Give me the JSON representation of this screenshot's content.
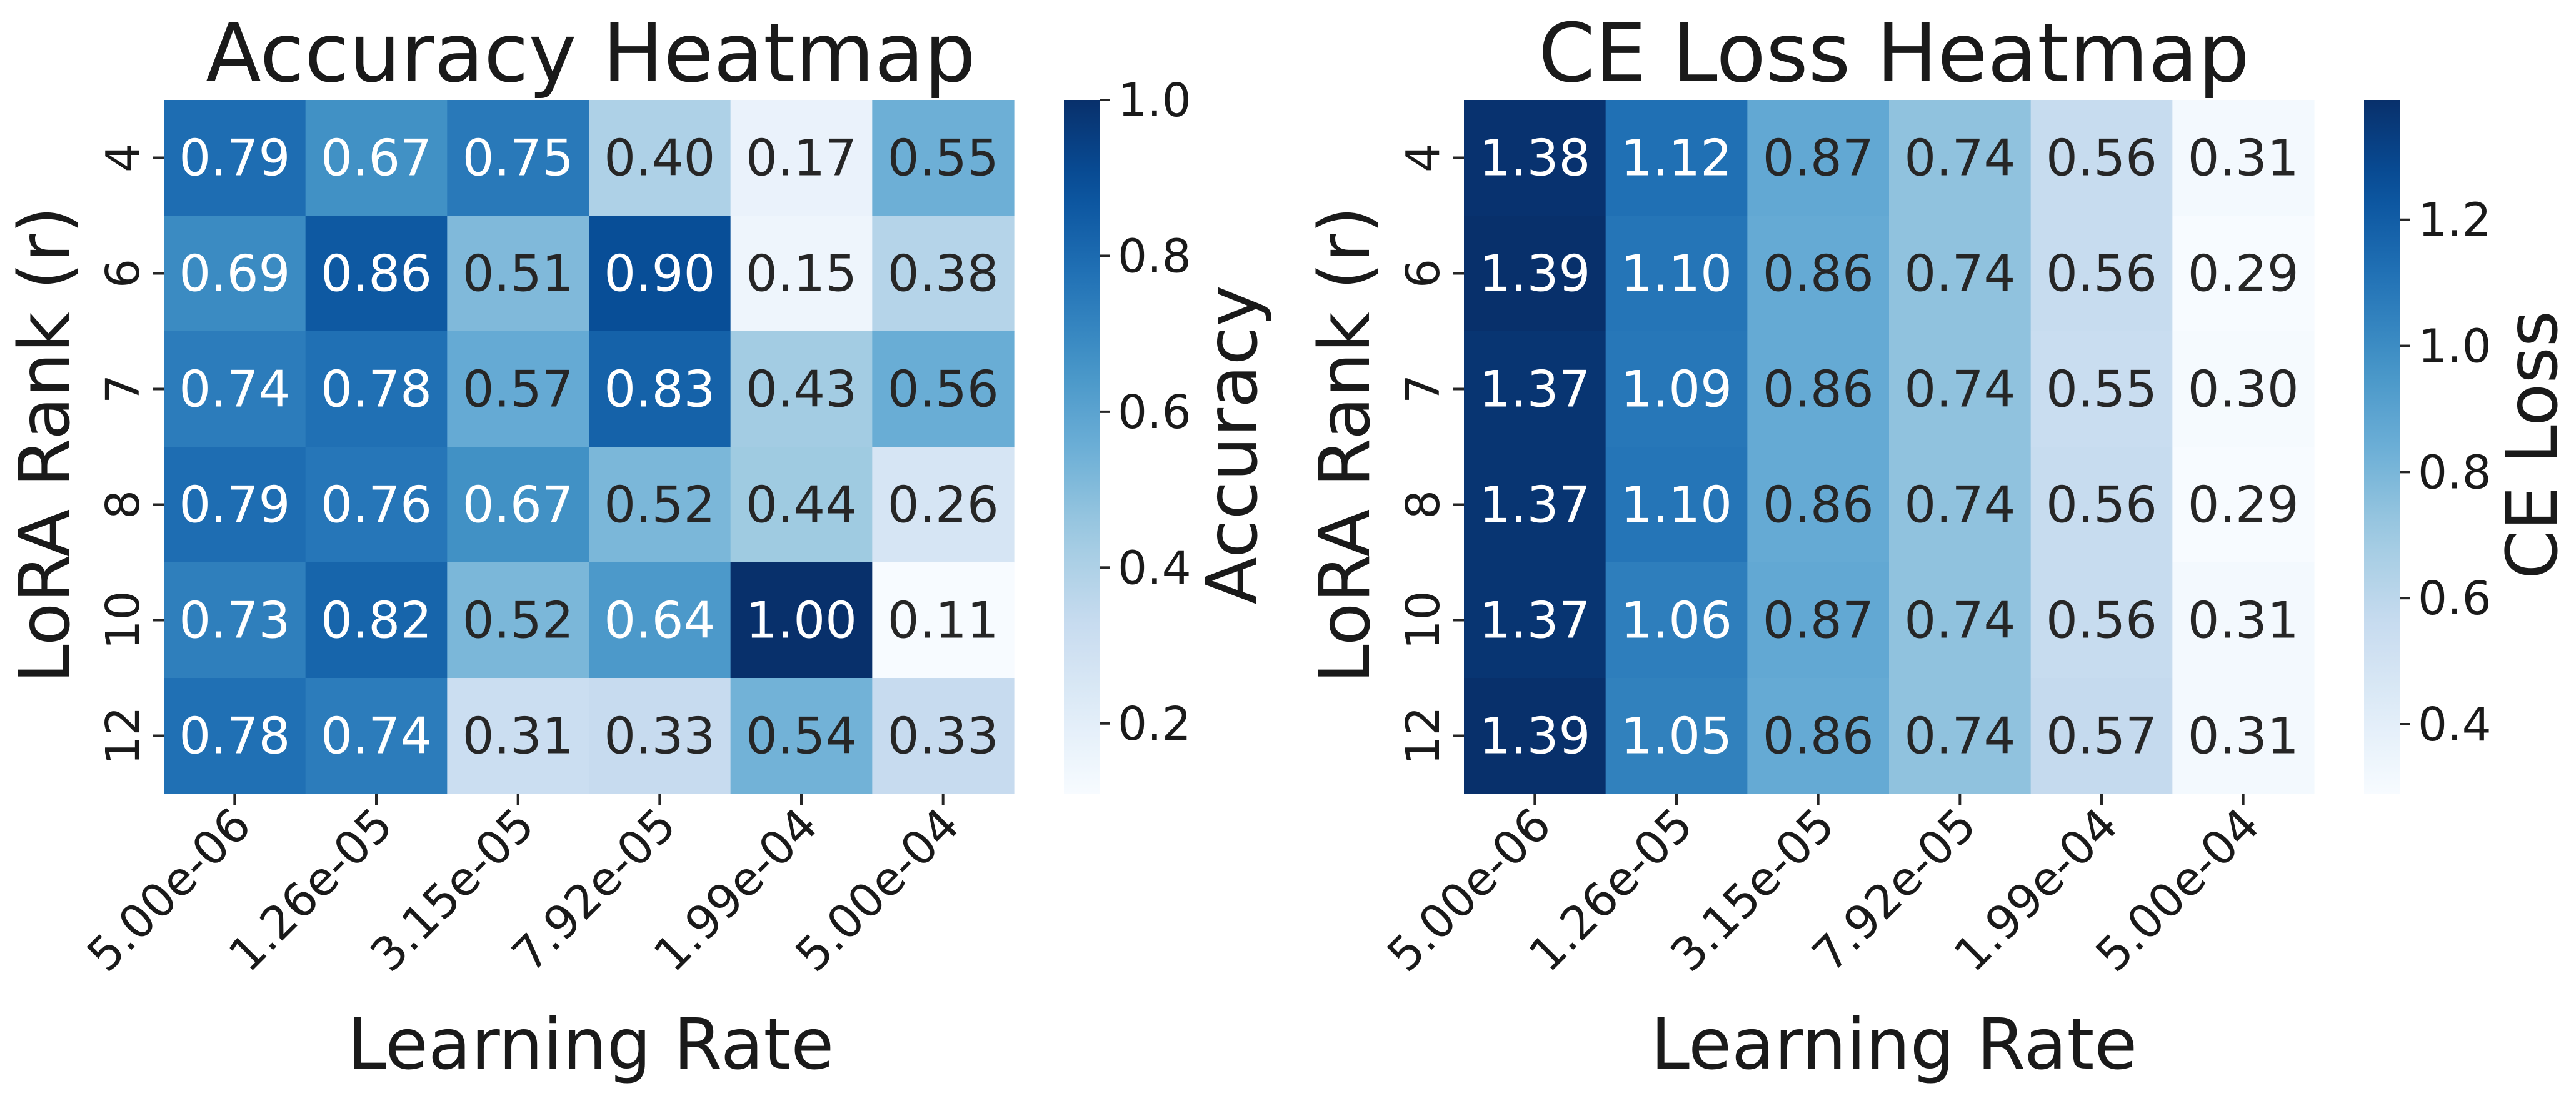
{
  "chart_data": [
    {
      "type": "heatmap",
      "title": "Accuracy Heatmap",
      "xlabel": "Learning Rate",
      "ylabel": "LoRA Rank (r)",
      "x_categories": [
        "5.00e-06",
        "1.26e-05",
        "3.15e-05",
        "7.92e-05",
        "1.99e-04",
        "5.00e-04"
      ],
      "y_categories": [
        "4",
        "6",
        "7",
        "8",
        "10",
        "12"
      ],
      "values": [
        [
          0.79,
          0.67,
          0.75,
          0.4,
          0.17,
          0.55
        ],
        [
          0.69,
          0.86,
          0.51,
          0.9,
          0.15,
          0.38
        ],
        [
          0.74,
          0.78,
          0.57,
          0.83,
          0.43,
          0.56
        ],
        [
          0.79,
          0.76,
          0.67,
          0.52,
          0.44,
          0.26
        ],
        [
          0.73,
          0.82,
          0.52,
          0.64,
          1.0,
          0.11
        ],
        [
          0.78,
          0.74,
          0.31,
          0.33,
          0.54,
          0.33
        ]
      ],
      "colorbar": {
        "label": "Accuracy",
        "vmin": 0.11,
        "vmax": 1.0,
        "ticks": [
          0.2,
          0.4,
          0.6,
          0.8,
          1.0
        ],
        "tick_labels": [
          "0.2",
          "0.4",
          "0.6",
          "0.8",
          "1.0"
        ]
      },
      "colormap": "Blues"
    },
    {
      "type": "heatmap",
      "title": "CE Loss Heatmap",
      "xlabel": "Learning Rate",
      "ylabel": "LoRA Rank (r)",
      "x_categories": [
        "5.00e-06",
        "1.26e-05",
        "3.15e-05",
        "7.92e-05",
        "1.99e-04",
        "5.00e-04"
      ],
      "y_categories": [
        "4",
        "6",
        "7",
        "8",
        "10",
        "12"
      ],
      "values": [
        [
          1.38,
          1.12,
          0.87,
          0.74,
          0.56,
          0.31
        ],
        [
          1.39,
          1.1,
          0.86,
          0.74,
          0.56,
          0.29
        ],
        [
          1.37,
          1.09,
          0.86,
          0.74,
          0.55,
          0.3
        ],
        [
          1.37,
          1.1,
          0.86,
          0.74,
          0.56,
          0.29
        ],
        [
          1.37,
          1.06,
          0.87,
          0.74,
          0.56,
          0.31
        ],
        [
          1.39,
          1.05,
          0.86,
          0.74,
          0.57,
          0.31
        ]
      ],
      "colorbar": {
        "label": "CE Loss",
        "vmin": 0.29,
        "vmax": 1.39,
        "ticks": [
          0.4,
          0.6,
          0.8,
          1.0,
          1.2
        ],
        "tick_labels": [
          "0.4",
          "0.6",
          "0.8",
          "1.0",
          "1.2"
        ]
      },
      "colormap": "Blues"
    }
  ]
}
